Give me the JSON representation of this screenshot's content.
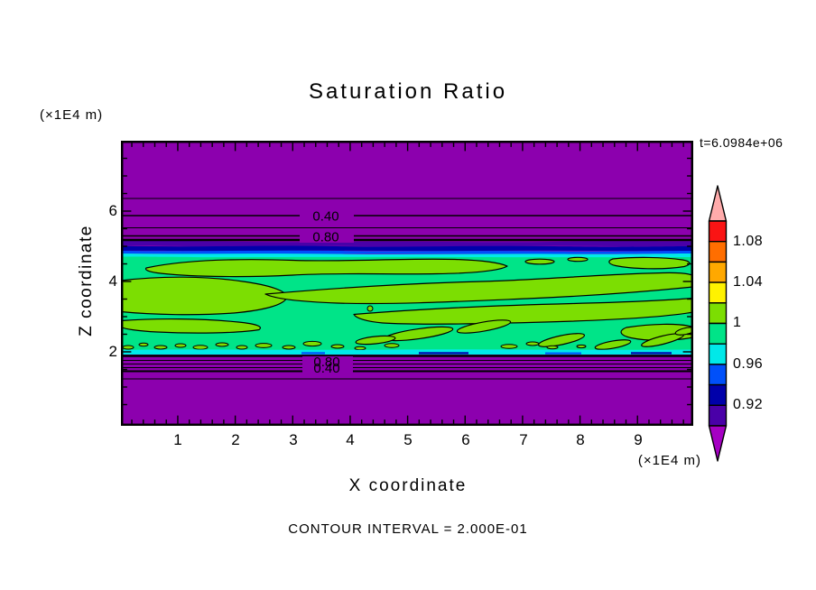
{
  "title": "Saturation Ratio",
  "time_label": "t=6.0984e+06",
  "footer_note": "CONTOUR INTERVAL = 2.000E-01",
  "axes": {
    "x": {
      "label": "X coordinate",
      "unit": "(×1E4 m)",
      "ticks": [
        "1",
        "2",
        "3",
        "4",
        "5",
        "6",
        "7",
        "8",
        "9"
      ]
    },
    "y": {
      "label": "Z coordinate",
      "unit": "(×1E4 m)",
      "ticks": [
        "2",
        "4",
        "6"
      ]
    }
  },
  "colorbar": {
    "tick_labels": [
      "1.08",
      "1.04",
      "1",
      "0.96",
      "0.92"
    ],
    "segment_colors_top_to_bottom": [
      "#FA1414",
      "#FF6E00",
      "#FFA800",
      "#FFF200",
      "#7CDE02",
      "#00E488",
      "#00E9E9",
      "#0050FA",
      "#0000AA",
      "#4A00A8"
    ],
    "over_range_color": "#FFABAB",
    "under_range_color": "#A500C3"
  },
  "contour_labels": {
    "upper": [
      "0.40",
      "0.80"
    ],
    "lower": [
      "0.80",
      "0.40"
    ]
  },
  "chart_data": {
    "type": "heatmap",
    "subtype": "filled-contour-with-line-contours",
    "title": "Saturation Ratio",
    "xlabel": "X coordinate",
    "ylabel": "Z coordinate",
    "x_unit": "x1E4 m",
    "y_unit": "x1E4 m",
    "x_range": [
      0,
      10
    ],
    "z_range": [
      0,
      8
    ],
    "time_annotation": "t=6.0984e+06",
    "contour_interval": 0.2,
    "colorbar": {
      "tick_labels": [
        1.08,
        1.04,
        1,
        0.96,
        0.92
      ],
      "level_min": 0.9,
      "level_max": 1.1,
      "level_step": 0.02,
      "orientation": "vertical-right",
      "over_color": "#FFABAB",
      "under_color": "#A500C3"
    },
    "labeled_line_contours": [
      {
        "value": 0.4,
        "z_approx": 5.95,
        "x_label_approx": 3.6
      },
      {
        "value": 0.8,
        "z_approx": 5.35,
        "x_label_approx": 3.6
      },
      {
        "value": 0.8,
        "z_approx": 1.95,
        "x_label_approx": 3.6
      },
      {
        "value": 0.4,
        "z_approx": 1.75,
        "x_label_approx": 3.6
      }
    ],
    "horizontal_layers_top_to_bottom": [
      {
        "z_from": 5.45,
        "z_to": 8.05,
        "value": "< 0.90 (under range)",
        "color": "#8C00AE",
        "line_contours_at_z": [
          6.4,
          5.95,
          5.6,
          5.4
        ]
      },
      {
        "z_from": 5.3,
        "z_to": 5.45,
        "value": "0.90 - 0.94",
        "color": "#4A00A8 / #0000AA"
      },
      {
        "z_from": 5.15,
        "z_to": 5.3,
        "value": "0.94 - 0.98",
        "color": "#0050FA / #00E9E9"
      },
      {
        "z_from": 2.05,
        "z_to": 5.15,
        "value": "0.98 - 1.00 background with 1.00 - 1.02 wavy lenses",
        "colors": [
          "#00E488",
          "#7CDE02"
        ]
      },
      {
        "z_from": 1.95,
        "z_to": 2.05,
        "value": "0.94 - 0.98",
        "color": "#00E9E9 / #0050FA"
      },
      {
        "z_from": 0.0,
        "z_to": 1.95,
        "value": "< 0.90 (under range)",
        "color": "#8C00AE",
        "line_contours_at_z": [
          1.88,
          1.78,
          1.68,
          1.58,
          1.35
        ]
      }
    ],
    "grid": false,
    "plot_background": "#8C00AE"
  }
}
